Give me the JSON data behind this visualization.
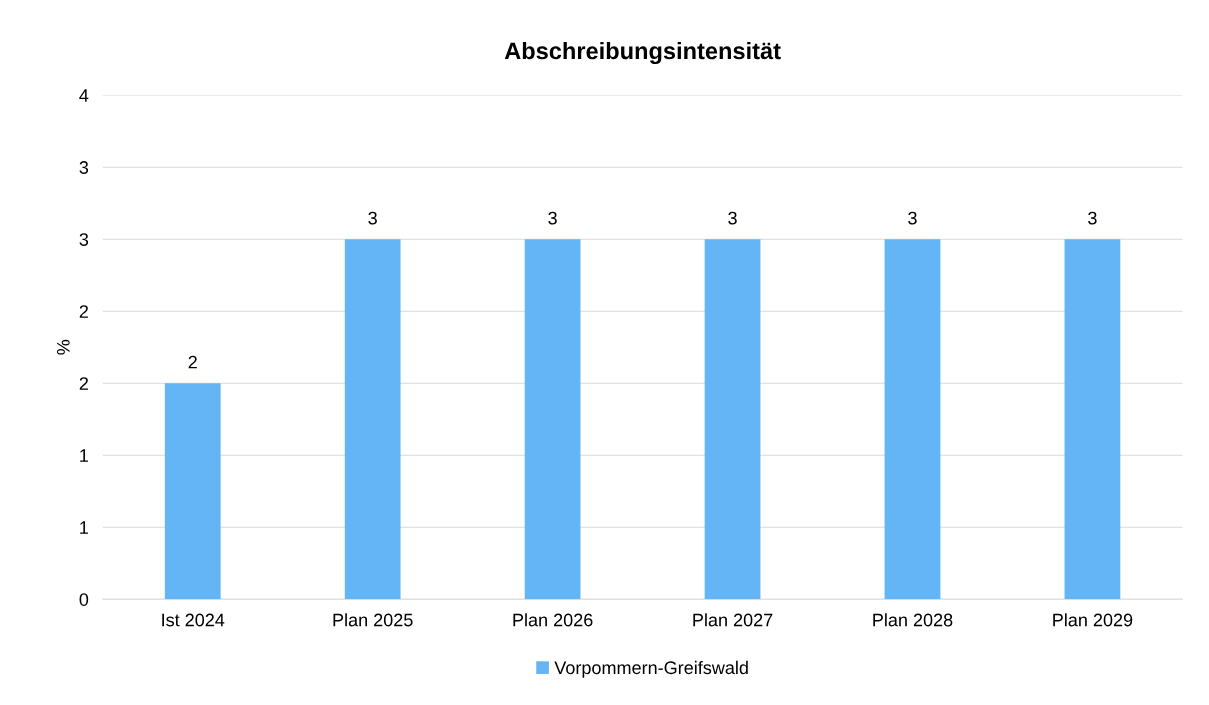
{
  "chart_data": {
    "type": "bar",
    "title": "Abschreibungsintensität",
    "ylabel": "%",
    "categories": [
      "Ist 2024",
      "Plan 2025",
      "Plan 2026",
      "Plan 2027",
      "Plan 2028",
      "Plan 2029"
    ],
    "series": [
      {
        "name": "Vorpommern-Greifswald",
        "color": "#63b5f5",
        "values": [
          1.5,
          2.5,
          2.5,
          2.5,
          2.5,
          2.5
        ],
        "value_labels": [
          "2",
          "3",
          "3",
          "3",
          "3",
          "3"
        ]
      }
    ],
    "ylim": [
      0,
      3.5
    ],
    "yticks": [
      0,
      {
        "value": 0.5,
        "label": "1"
      },
      1,
      {
        "value": 1.5,
        "label": "2"
      },
      2,
      {
        "value": 2.5,
        "label": "3"
      },
      3,
      {
        "value": 3.5,
        "label": "4"
      }
    ],
    "grid": "y",
    "legend": "bottom"
  }
}
